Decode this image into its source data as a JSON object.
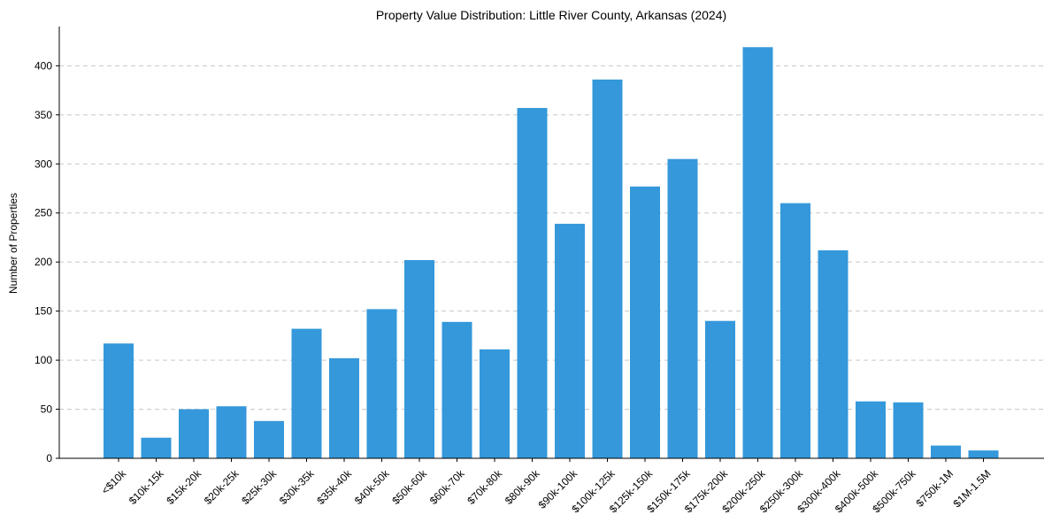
{
  "chart_data": {
    "type": "bar",
    "title": "Property Value Distribution: Little River County, Arkansas (2024)",
    "xlabel": "",
    "ylabel": "Number of Properties",
    "categories": [
      "<$10k",
      "$10k-15k",
      "$15k-20k",
      "$20k-25k",
      "$25k-30k",
      "$30k-35k",
      "$35k-40k",
      "$40k-50k",
      "$50k-60k",
      "$60k-70k",
      "$70k-80k",
      "$80k-90k",
      "$90k-100k",
      "$100k-125k",
      "$125k-150k",
      "$150k-175k",
      "$175k-200k",
      "$200k-250k",
      "$250k-300k",
      "$300k-400k",
      "$400k-500k",
      "$500k-750k",
      "$750k-1M",
      "$1M-1.5M"
    ],
    "values": [
      117,
      21,
      50,
      53,
      38,
      132,
      102,
      152,
      202,
      139,
      111,
      357,
      239,
      386,
      277,
      305,
      140,
      419,
      260,
      212,
      58,
      57,
      13,
      8
    ],
    "yticks": [
      0,
      50,
      100,
      150,
      200,
      250,
      300,
      350,
      400
    ],
    "ylim": [
      0,
      440
    ],
    "color": "#3498db",
    "grid": "y-dashed"
  }
}
